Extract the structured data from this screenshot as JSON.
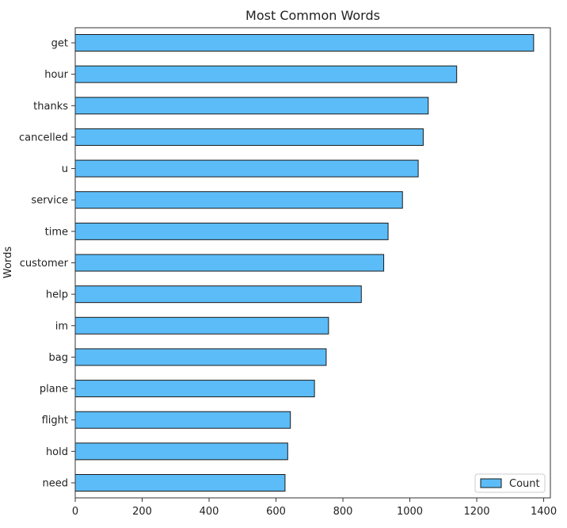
{
  "chart_data": {
    "type": "bar",
    "orientation": "horizontal",
    "title": "Most Common Words",
    "xlabel": "",
    "ylabel": "Words",
    "categories": [
      "get",
      "hour",
      "thanks",
      "cancelled",
      "u",
      "service",
      "time",
      "customer",
      "help",
      "im",
      "bag",
      "plane",
      "flight",
      "hold",
      "need"
    ],
    "series": [
      {
        "name": "Count",
        "values": [
          1370,
          1140,
          1055,
          1040,
          1025,
          978,
          935,
          922,
          855,
          757,
          750,
          715,
          643,
          635,
          627
        ]
      }
    ],
    "xlim": [
      0,
      1420
    ],
    "xticks": [
      0,
      200,
      400,
      600,
      800,
      1000,
      1200,
      1400
    ],
    "grid": false,
    "legend_position": "bottom-right",
    "colors": {
      "bar_fill": "#5bbcf8",
      "bar_edge": "#1a1a1a",
      "axis": "#333333"
    }
  }
}
